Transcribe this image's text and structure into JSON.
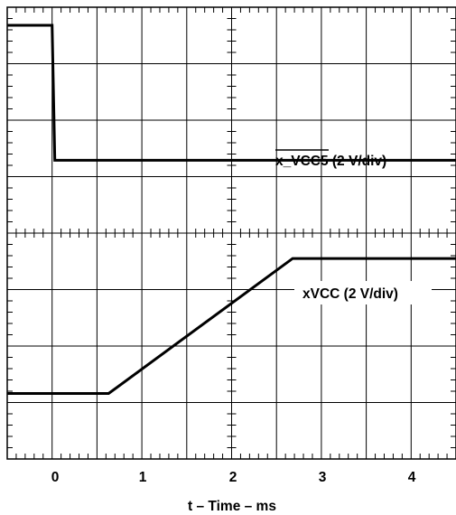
{
  "chart_data": {
    "type": "line",
    "xlabel": "t – Time – ms",
    "xlim": [
      -0.5,
      4.5
    ],
    "x_ticks": [
      "0",
      "1",
      "2",
      "3",
      "4"
    ],
    "x_tick_values": [
      0,
      1,
      2,
      3,
      4
    ],
    "divisions": {
      "horizontal": 10,
      "vertical": 8
    },
    "grid": true,
    "series": [
      {
        "name": "x_VCC5 (2 V/div)",
        "name_overlined_part": "x_VCC5",
        "name_suffix": " (2 V/div)",
        "unit_label": "(2 V/div)",
        "x": [
          -0.5,
          0.0,
          0.03,
          4.5
        ],
        "y_div": [
          7.68,
          7.68,
          5.29,
          5.29
        ]
      },
      {
        "name": "xVCC (2 V/div)",
        "unit_label": "(2 V/div)",
        "x": [
          -0.5,
          0.63,
          2.68,
          4.5
        ],
        "y_div": [
          1.16,
          1.16,
          3.55,
          3.55
        ]
      }
    ],
    "colors": {
      "trace": "#000000",
      "grid": "#000000",
      "background": "#ffffff"
    }
  }
}
